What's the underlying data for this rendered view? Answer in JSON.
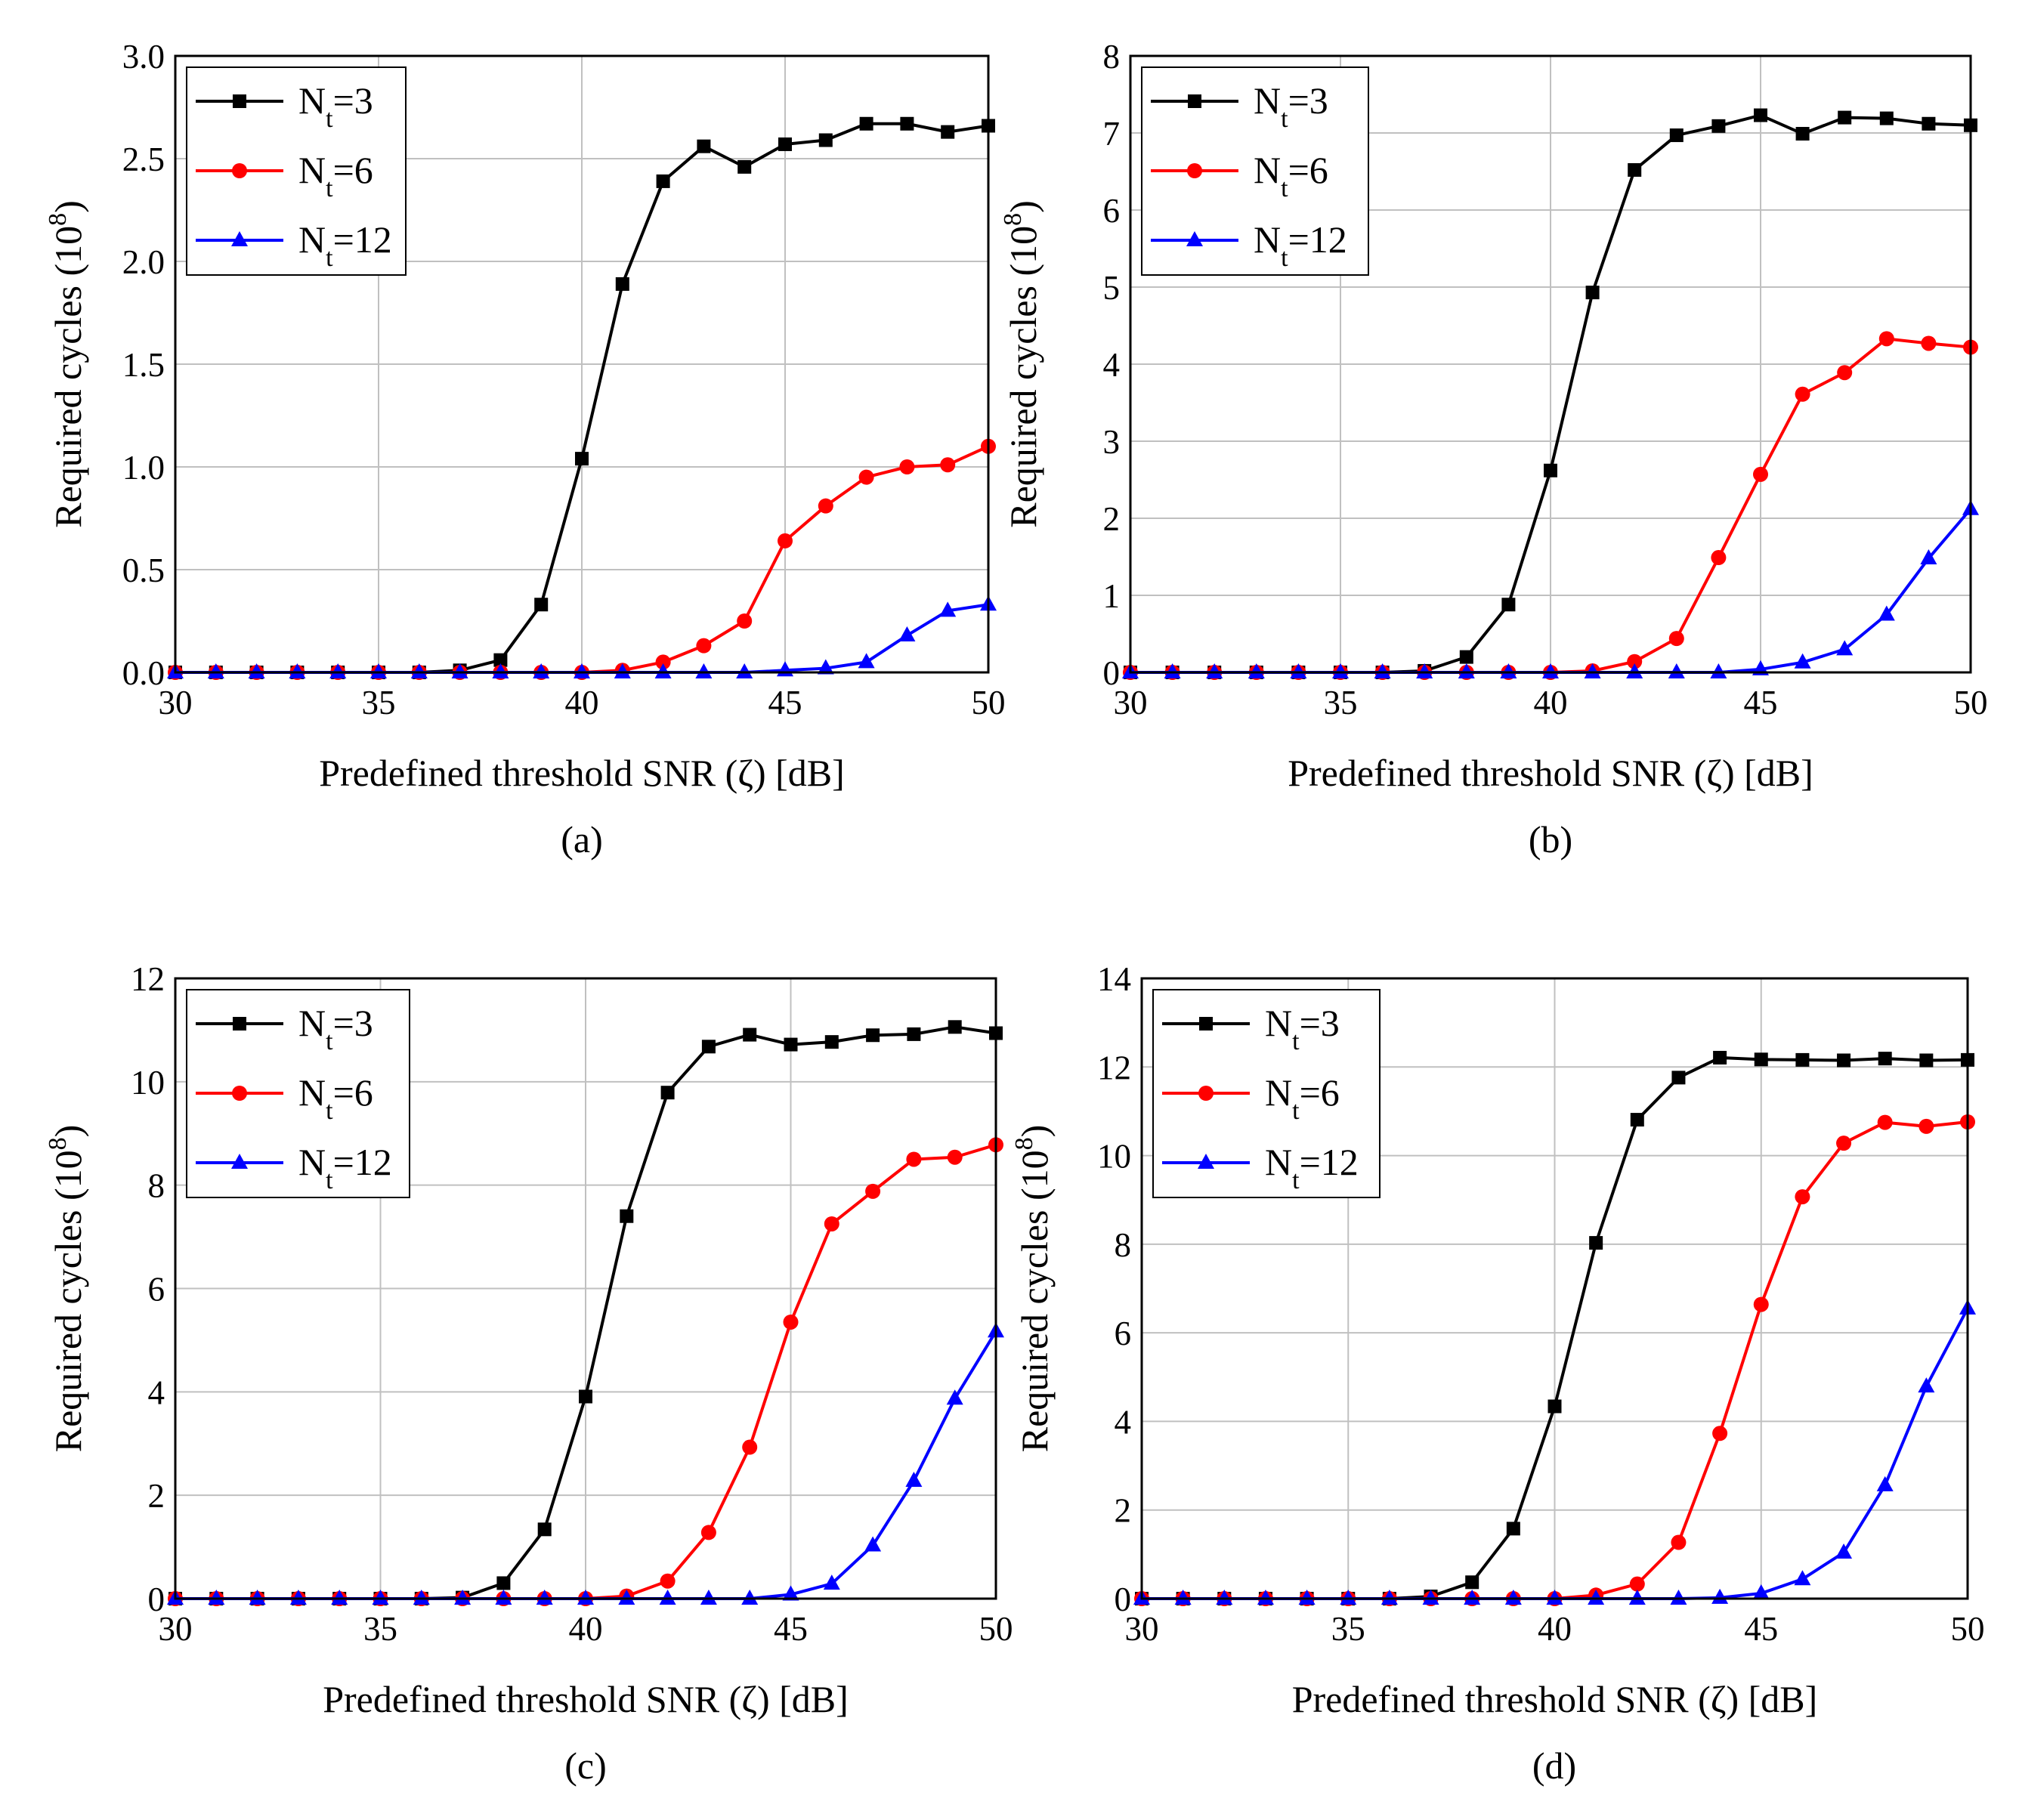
{
  "chart_data": [
    {
      "type": "line",
      "caption": "(a)",
      "xlabel": "Predefined threshold SNR (ζ) [dB]",
      "ylabel": "Required cycles (10⁸)",
      "ylabel_base": "Required cycles (10",
      "ylabel_exp": "8",
      "ylabel_close": ")",
      "xlim": [
        30,
        50
      ],
      "ylim": [
        0,
        3.0
      ],
      "xticks": [
        "30",
        "35",
        "40",
        "45",
        "50"
      ],
      "yticks": [
        "0.0",
        "0.5",
        "1.0",
        "1.5",
        "2.0",
        "2.5",
        "3.0"
      ],
      "grid": true,
      "legend_position": "top-left",
      "x": [
        30,
        31,
        32,
        33,
        34,
        35,
        36,
        37,
        38,
        39,
        40,
        41,
        42,
        43,
        44,
        45,
        46,
        47,
        48,
        49,
        50
      ],
      "series": [
        {
          "name": "Nt=3",
          "label_base": "N",
          "label_sub": "t",
          "label_rest": "=3",
          "color": "#000000",
          "marker": "square",
          "values": [
            0,
            0,
            0,
            0,
            0,
            0,
            0,
            0.01,
            0.06,
            0.33,
            1.04,
            1.89,
            2.39,
            2.56,
            2.46,
            2.57,
            2.59,
            2.67,
            2.67,
            2.63,
            2.66
          ]
        },
        {
          "name": "Nt=6",
          "label_base": "N",
          "label_sub": "t",
          "label_rest": "=6",
          "color": "#ff0000",
          "marker": "circle",
          "values": [
            0,
            0,
            0,
            0,
            0,
            0,
            0,
            0,
            0,
            0,
            0,
            0.01,
            0.05,
            0.13,
            0.25,
            0.64,
            0.81,
            0.95,
            1.0,
            1.01,
            1.1
          ]
        },
        {
          "name": "Nt=12",
          "label_base": "N",
          "label_sub": "t",
          "label_rest": "=12",
          "color": "#0000ff",
          "marker": "triangle",
          "values": [
            0,
            0,
            0,
            0,
            0,
            0,
            0,
            0,
            0,
            0,
            0,
            0,
            0,
            0,
            0,
            0.01,
            0.02,
            0.05,
            0.18,
            0.3,
            0.33
          ]
        }
      ]
    },
    {
      "type": "line",
      "caption": "(b)",
      "xlabel": "Predefined threshold SNR (ζ) [dB]",
      "ylabel": "Required cycles (10⁸)",
      "ylabel_base": "Required cycles (10",
      "ylabel_exp": "8",
      "ylabel_close": ")",
      "xlim": [
        30,
        50
      ],
      "ylim": [
        0,
        8
      ],
      "xticks": [
        "30",
        "35",
        "40",
        "45",
        "50"
      ],
      "yticks": [
        "0",
        "1",
        "2",
        "3",
        "4",
        "5",
        "6",
        "7",
        "8"
      ],
      "grid": true,
      "legend_position": "top-left",
      "x": [
        30,
        31,
        32,
        33,
        34,
        35,
        36,
        37,
        38,
        39,
        40,
        41,
        42,
        43,
        44,
        45,
        46,
        47,
        48,
        49,
        50
      ],
      "series": [
        {
          "name": "Nt=3",
          "label_base": "N",
          "label_sub": "t",
          "label_rest": "=3",
          "color": "#000000",
          "marker": "square",
          "values": [
            0,
            0,
            0,
            0,
            0,
            0,
            0,
            0.02,
            0.2,
            0.88,
            2.62,
            4.93,
            6.52,
            6.97,
            7.09,
            7.23,
            6.99,
            7.2,
            7.19,
            7.12,
            7.1
          ]
        },
        {
          "name": "Nt=6",
          "label_base": "N",
          "label_sub": "t",
          "label_rest": "=6",
          "color": "#ff0000",
          "marker": "circle",
          "values": [
            0,
            0,
            0,
            0,
            0,
            0,
            0,
            0,
            0,
            0,
            0,
            0.02,
            0.14,
            0.44,
            1.49,
            2.57,
            3.61,
            3.89,
            4.33,
            4.27,
            4.22
          ]
        },
        {
          "name": "Nt=12",
          "label_base": "N",
          "label_sub": "t",
          "label_rest": "=12",
          "color": "#0000ff",
          "marker": "triangle",
          "values": [
            0,
            0,
            0,
            0,
            0,
            0,
            0,
            0,
            0,
            0,
            0,
            0,
            0,
            0,
            0,
            0.04,
            0.13,
            0.3,
            0.75,
            1.48,
            2.12
          ]
        }
      ]
    },
    {
      "type": "line",
      "caption": "(c)",
      "xlabel": "Predefined threshold SNR (ζ) [dB]",
      "ylabel": "Required cycles (10⁸)",
      "ylabel_base": "Required cycles (10",
      "ylabel_exp": "8",
      "ylabel_close": ")",
      "xlim": [
        30,
        50
      ],
      "ylim": [
        0,
        12
      ],
      "xticks": [
        "30",
        "35",
        "40",
        "45",
        "50"
      ],
      "yticks": [
        "0",
        "2",
        "4",
        "6",
        "8",
        "10",
        "12"
      ],
      "grid": true,
      "legend_position": "top-left",
      "x": [
        30,
        31,
        32,
        33,
        34,
        35,
        36,
        37,
        38,
        39,
        40,
        41,
        42,
        43,
        44,
        45,
        46,
        47,
        48,
        49,
        50
      ],
      "series": [
        {
          "name": "Nt=3",
          "label_base": "N",
          "label_sub": "t",
          "label_rest": "=3",
          "color": "#000000",
          "marker": "square",
          "values": [
            0,
            0,
            0,
            0,
            0,
            0,
            0,
            0.02,
            0.3,
            1.34,
            3.91,
            7.4,
            9.79,
            10.68,
            10.91,
            10.72,
            10.77,
            10.9,
            10.92,
            11.06,
            10.94
          ]
        },
        {
          "name": "Nt=6",
          "label_base": "N",
          "label_sub": "t",
          "label_rest": "=6",
          "color": "#ff0000",
          "marker": "circle",
          "values": [
            0,
            0,
            0,
            0,
            0,
            0,
            0,
            0,
            0,
            0,
            0,
            0.05,
            0.34,
            1.28,
            2.93,
            5.35,
            7.25,
            7.88,
            8.5,
            8.54,
            8.78
          ]
        },
        {
          "name": "Nt=12",
          "label_base": "N",
          "label_sub": "t",
          "label_rest": "=12",
          "color": "#0000ff",
          "marker": "triangle",
          "values": [
            0,
            0,
            0,
            0,
            0,
            0,
            0,
            0,
            0,
            0,
            0,
            0,
            0,
            0,
            0,
            0.08,
            0.29,
            1.03,
            2.28,
            3.87,
            5.17
          ]
        }
      ]
    },
    {
      "type": "line",
      "caption": "(d)",
      "xlabel": "Predefined threshold SNR (ζ) [dB]",
      "ylabel": "Required cycles (10⁸)",
      "ylabel_base": "Required cycles (10",
      "ylabel_exp": "8",
      "ylabel_close": ")",
      "xlim": [
        30,
        50
      ],
      "ylim": [
        0,
        14
      ],
      "xticks": [
        "30",
        "35",
        "40",
        "45",
        "50"
      ],
      "yticks": [
        "0",
        "2",
        "4",
        "6",
        "8",
        "10",
        "12",
        "14"
      ],
      "grid": true,
      "legend_position": "top-left",
      "x": [
        30,
        31,
        32,
        33,
        34,
        35,
        36,
        37,
        38,
        39,
        40,
        41,
        42,
        43,
        44,
        45,
        46,
        47,
        48,
        49,
        50
      ],
      "series": [
        {
          "name": "Nt=3",
          "label_base": "N",
          "label_sub": "t",
          "label_rest": "=3",
          "color": "#000000",
          "marker": "square",
          "values": [
            0,
            0,
            0,
            0,
            0,
            0,
            0,
            0.05,
            0.37,
            1.58,
            4.34,
            8.03,
            10.81,
            11.76,
            12.21,
            12.17,
            12.16,
            12.15,
            12.19,
            12.15,
            12.16
          ]
        },
        {
          "name": "Nt=6",
          "label_base": "N",
          "label_sub": "t",
          "label_rest": "=6",
          "color": "#ff0000",
          "marker": "circle",
          "values": [
            0,
            0,
            0,
            0,
            0,
            0,
            0,
            0,
            0,
            0,
            0,
            0.08,
            0.33,
            1.27,
            3.73,
            6.64,
            9.07,
            10.28,
            10.75,
            10.66,
            10.76
          ]
        },
        {
          "name": "Nt=12",
          "label_base": "N",
          "label_sub": "t",
          "label_rest": "=12",
          "color": "#0000ff",
          "marker": "triangle",
          "values": [
            0,
            0,
            0,
            0,
            0,
            0,
            0,
            0,
            0,
            0,
            0,
            0,
            0,
            0,
            0.02,
            0.12,
            0.44,
            1.04,
            2.56,
            4.79,
            6.55
          ]
        }
      ]
    }
  ]
}
